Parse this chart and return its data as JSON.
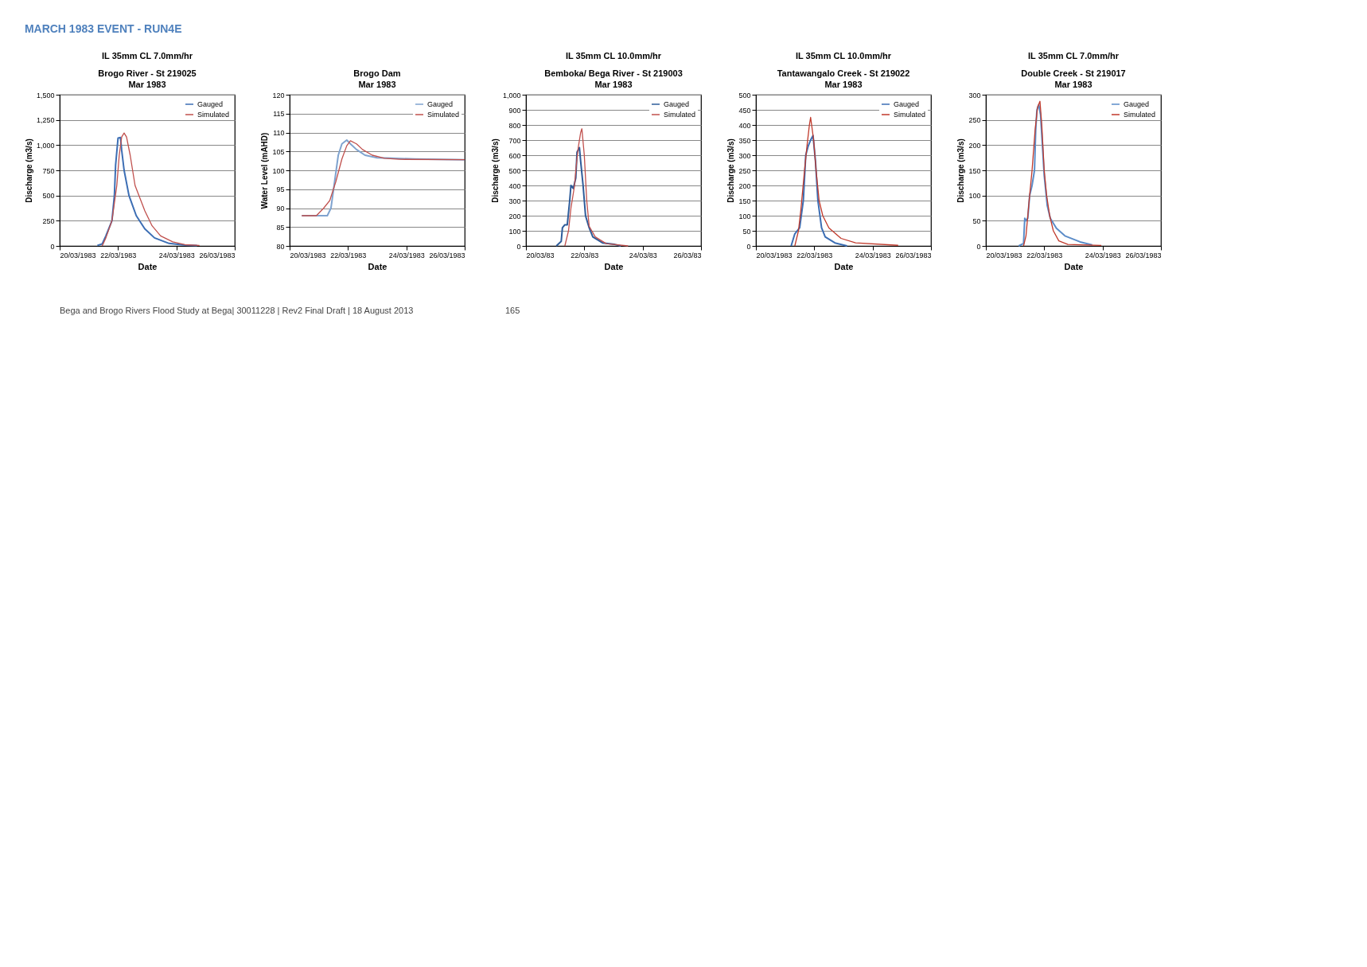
{
  "chart_data": [
    {
      "type": "line",
      "title": "Brogo River - St 219025",
      "subtitle": "Mar 1983",
      "xlabel": "Date",
      "ylabel": "Discharge (m3/s)",
      "annotations": [
        "MARCH 1983 EVENT - RUN4E",
        "IL 35mm CL 7.0mm/hr"
      ],
      "legend": "top right",
      "grid": "y",
      "marker": "none",
      "line_style": "solid",
      "xlim": [
        "1983-03-20",
        "1983-03-26"
      ],
      "xticks": [
        {
          "value": "1983-03-20",
          "label": "20/03/1983"
        },
        {
          "value": "1983-03-22",
          "label": "22/03/1983"
        },
        {
          "value": "1983-03-24",
          "label": "24/03/1983"
        },
        {
          "value": "1983-03-26",
          "label": "26/03/1983"
        }
      ],
      "ylim": [
        0,
        1500
      ],
      "yticks": [
        0,
        250,
        500,
        750,
        {
          "value": 1000,
          "label": "1,000"
        },
        {
          "value": 1250,
          "label": "1,250"
        },
        {
          "value": 1500,
          "label": "1,500"
        }
      ],
      "series": [
        {
          "name": "Gauged",
          "color": "#3c6eb4",
          "x": [
            "1983-03-21T07:00",
            "1983-03-21T11:00",
            "1983-03-21T14:00",
            "1983-03-21T19:00",
            "1983-03-21T21:00",
            "1983-03-21T22:00",
            "1983-03-22T00:00",
            "1983-03-22T02:00",
            "1983-03-22T03:00",
            "1983-03-22T05:00",
            "1983-03-22T09:00",
            "1983-03-22T15:00",
            "1983-03-22T22:00",
            "1983-03-23T06:00",
            "1983-03-23T18:00",
            "1983-03-24T07:00",
            "1983-03-24T17:00"
          ],
          "values": [
            5,
            20,
            100,
            250,
            500,
            800,
            1070,
            1075,
            950,
            750,
            500,
            300,
            170,
            80,
            25,
            8,
            3
          ]
        },
        {
          "name": "Simulated",
          "color": "#c0504d",
          "x": [
            "1983-03-21T11:00",
            "1983-03-21T14:00",
            "1983-03-21T19:00",
            "1983-03-21T23:00",
            "1983-03-22T01:00",
            "1983-03-22T03:00",
            "1983-03-22T05:00",
            "1983-03-22T07:00",
            "1983-03-22T10:00",
            "1983-03-22T14:00",
            "1983-03-22T22:00",
            "1983-03-23T04:00",
            "1983-03-23T11:00",
            "1983-03-23T21:00",
            "1983-03-24T07:00",
            "1983-03-24T19:00"
          ],
          "values": [
            0,
            80,
            250,
            600,
            900,
            1080,
            1120,
            1080,
            900,
            600,
            350,
            200,
            100,
            40,
            12,
            5
          ]
        }
      ]
    },
    {
      "type": "line",
      "title": "Brogo Dam",
      "subtitle": "Mar 1983",
      "xlabel": "Date",
      "ylabel": "Water Level (mAHD)",
      "legend": "top right",
      "grid": "y",
      "marker": "none",
      "line_style": "solid",
      "xlim": [
        "1983-03-20",
        "1983-03-26"
      ],
      "xticks": [
        {
          "value": "1983-03-20",
          "label": "20/03/1983"
        },
        {
          "value": "1983-03-22",
          "label": "22/03/1983"
        },
        {
          "value": "1983-03-24",
          "label": "24/03/1983"
        },
        {
          "value": "1983-03-26",
          "label": "26/03/1983"
        }
      ],
      "ylim": [
        80,
        120
      ],
      "yticks": [
        80,
        85,
        90,
        95,
        100,
        105,
        110,
        115,
        120
      ],
      "series": [
        {
          "name": "Gauged",
          "color": "#7fa3cf",
          "x": [
            "1983-03-20T10:00",
            "1983-03-21T07:00",
            "1983-03-21T10:00",
            "1983-03-21T13:00",
            "1983-03-21T16:00",
            "1983-03-21T19:00",
            "1983-03-21T23:00",
            "1983-03-22T02:00",
            "1983-03-22T07:00",
            "1983-03-22T14:00",
            "1983-03-23T00:00",
            "1983-03-23T12:00",
            "1983-03-24T07:00",
            "1983-03-26T00:00"
          ],
          "values": [
            88,
            88,
            90,
            97,
            104,
            107,
            108,
            107,
            105.5,
            104,
            103.3,
            103.2,
            103,
            102.8
          ]
        },
        {
          "name": "Simulated",
          "color": "#c0504d",
          "x": [
            "1983-03-20T10:00",
            "1983-03-20T22:00",
            "1983-03-21T04:00",
            "1983-03-21T09:00",
            "1983-03-21T14:00",
            "1983-03-21T19:00",
            "1983-03-21T23:00",
            "1983-03-22T02:00",
            "1983-03-22T07:00",
            "1983-03-22T12:00",
            "1983-03-22T20:00",
            "1983-03-23T06:00",
            "1983-03-23T18:00",
            "1983-03-26T00:00"
          ],
          "values": [
            88,
            88,
            90,
            92,
            97,
            103,
            106.5,
            107.8,
            107,
            105.5,
            104,
            103.2,
            102.9,
            102.8
          ]
        }
      ]
    },
    {
      "type": "line",
      "title": "Bemboka/ Bega River - St 219003",
      "subtitle": "Mar 1983",
      "xlabel": "Date",
      "ylabel": "Discharge (m3/s)",
      "annotations": [
        "IL 35mm CL 10.0mm/hr"
      ],
      "legend": "top right",
      "grid": "y",
      "marker": "none",
      "line_style": "solid",
      "xlim": [
        "1983-03-20",
        "1983-03-26"
      ],
      "xticks": [
        {
          "value": "1983-03-20",
          "label": "20/03/83"
        },
        {
          "value": "1983-03-22",
          "label": "22/03/83"
        },
        {
          "value": "1983-03-24",
          "label": "24/03/83"
        },
        {
          "value": "1983-03-26",
          "label": "26/03/83"
        }
      ],
      "ylim": [
        0,
        1000
      ],
      "yticks": [
        0,
        100,
        200,
        300,
        400,
        500,
        600,
        700,
        800,
        900,
        {
          "value": 1000,
          "label": "1,000"
        }
      ],
      "series": [
        {
          "name": "Gauged",
          "color": "#2e5c9a",
          "x": [
            "1983-03-21T01:00",
            "1983-03-21T05:00",
            "1983-03-21T06:00",
            "1983-03-21T08:00",
            "1983-03-21T10:00",
            "1983-03-21T12:00",
            "1983-03-21T13:00",
            "1983-03-21T15:00",
            "1983-03-21T17:00",
            "1983-03-21T18:00",
            "1983-03-21T20:00",
            "1983-03-21T21:00",
            "1983-03-21T23:00",
            "1983-03-22T01:00",
            "1983-03-22T04:00",
            "1983-03-22T07:00",
            "1983-03-22T15:00",
            "1983-03-23T01:00",
            "1983-03-23T06:00"
          ],
          "values": [
            0,
            30,
            120,
            140,
            140,
            300,
            400,
            380,
            450,
            620,
            650,
            560,
            400,
            200,
            120,
            60,
            20,
            10,
            0
          ]
        },
        {
          "name": "Simulated",
          "color": "#c0504d",
          "x": [
            "1983-03-21T08:00",
            "1983-03-21T11:00",
            "1983-03-21T13:00",
            "1983-03-21T16:00",
            "1983-03-21T17:00",
            "1983-03-21T19:00",
            "1983-03-21T21:00",
            "1983-03-21T22:00",
            "1983-03-22T00:00",
            "1983-03-22T02:00",
            "1983-03-22T04:00",
            "1983-03-22T09:00",
            "1983-03-22T18:00",
            "1983-03-23T12:00"
          ],
          "values": [
            0,
            100,
            250,
            400,
            500,
            650,
            750,
            775,
            600,
            300,
            130,
            60,
            15,
            0
          ]
        }
      ]
    },
    {
      "type": "line",
      "title": "Tantawangalo  Creek - St 219022",
      "subtitle": "Mar 1983",
      "xlabel": "Date",
      "ylabel": "Discharge (m3/s)",
      "annotations": [
        "IL 35mm CL 10.0mm/hr"
      ],
      "legend": "top right",
      "grid": "y",
      "marker": "none",
      "line_style": "solid",
      "xlim": [
        "1983-03-20",
        "1983-03-26"
      ],
      "xticks": [
        {
          "value": "1983-03-20",
          "label": "20/03/1983"
        },
        {
          "value": "1983-03-22",
          "label": "22/03/1983"
        },
        {
          "value": "1983-03-24",
          "label": "24/03/1983"
        },
        {
          "value": "1983-03-26",
          "label": "26/03/1983"
        }
      ],
      "ylim": [
        0,
        500
      ],
      "yticks": [
        0,
        50,
        100,
        150,
        200,
        250,
        300,
        350,
        400,
        450,
        500
      ],
      "series": [
        {
          "name": "Gauged",
          "color": "#3c6eb4",
          "x": [
            "1983-03-21T05:00",
            "1983-03-21T08:00",
            "1983-03-21T12:00",
            "1983-03-21T15:00",
            "1983-03-21T17:00",
            "1983-03-21T19:00",
            "1983-03-21T21:00",
            "1983-03-21T23:00",
            "1983-03-22T01:00",
            "1983-03-22T03:00",
            "1983-03-22T06:00",
            "1983-03-22T09:00",
            "1983-03-22T17:00",
            "1983-03-23T03:00"
          ],
          "values": [
            0,
            40,
            60,
            150,
            300,
            330,
            350,
            365,
            280,
            150,
            60,
            30,
            10,
            0
          ]
        },
        {
          "name": "Simulated",
          "color": "#c0392b",
          "x": [
            "1983-03-21T08:00",
            "1983-03-21T11:00",
            "1983-03-21T13:00",
            "1983-03-21T16:00",
            "1983-03-21T18:00",
            "1983-03-21T20:00",
            "1983-03-21T21:00",
            "1983-03-21T23:30",
            "1983-03-22T01:30",
            "1983-03-22T04:00",
            "1983-03-22T07:00",
            "1983-03-22T12:00",
            "1983-03-22T22:00",
            "1983-03-23T10:00",
            "1983-03-24T21:00"
          ],
          "values": [
            0,
            50,
            120,
            250,
            330,
            400,
            425,
            350,
            250,
            150,
            100,
            60,
            25,
            10,
            2
          ]
        }
      ]
    },
    {
      "type": "line",
      "title": "Double Creek - St 219017",
      "subtitle": "Mar 1983",
      "xlabel": "Date",
      "ylabel": "Discharge (m3/s)",
      "annotations": [
        "IL 35mm CL 7.0mm/hr",
        "Bega and Brogo Rivers Flood Study at Bega| 30011228 | Rev2 Final Draft | 18 August 2013",
        "165"
      ],
      "legend": "top right",
      "grid": "y",
      "marker": "none",
      "line_style": "solid",
      "xlim": [
        "1983-03-20",
        "1983-03-26"
      ],
      "xticks": [
        {
          "value": "1983-03-20",
          "label": "20/03/1983"
        },
        {
          "value": "1983-03-22",
          "label": "22/03/1983"
        },
        {
          "value": "1983-03-24",
          "label": "24/03/1983"
        },
        {
          "value": "1983-03-26",
          "label": "26/03/1983"
        }
      ],
      "ylim": [
        0,
        300
      ],
      "yticks": [
        0,
        50,
        100,
        150,
        200,
        250,
        300
      ],
      "series": [
        {
          "name": "Gauged",
          "color": "#5b8cc8",
          "x": [
            "1983-03-21T03:00",
            "1983-03-21T07:00",
            "1983-03-21T08:00",
            "1983-03-21T09:00",
            "1983-03-21T10:30",
            "1983-03-21T12:00",
            "1983-03-21T14:00",
            "1983-03-21T16:00",
            "1983-03-21T17:00",
            "1983-03-21T18:00",
            "1983-03-21T19:30",
            "1983-03-21T21:00",
            "1983-03-21T22:00",
            "1983-03-22T00:00",
            "1983-03-22T02:30",
            "1983-03-22T05:00",
            "1983-03-22T10:00",
            "1983-03-22T17:00",
            "1983-03-23T05:30",
            "1983-03-23T15:30"
          ],
          "values": [
            0,
            5,
            55,
            50,
            55,
            100,
            120,
            150,
            230,
            270,
            280,
            260,
            220,
            140,
            80,
            55,
            35,
            20,
            8,
            2
          ]
        },
        {
          "name": "Simulated",
          "color": "#c0392b",
          "x": [
            "1983-03-21T07:00",
            "1983-03-21T09:00",
            "1983-03-21T12:00",
            "1983-03-21T14:00",
            "1983-03-21T16:30",
            "1983-03-21T18:30",
            "1983-03-21T20:30",
            "1983-03-21T22:00",
            "1983-03-22T00:00",
            "1983-03-22T02:00",
            "1983-03-22T04:30",
            "1983-03-22T07:30",
            "1983-03-22T12:00",
            "1983-03-22T19:30",
            "1983-03-23T23:00"
          ],
          "values": [
            0,
            20,
            100,
            150,
            230,
            275,
            287,
            240,
            150,
            100,
            60,
            30,
            10,
            3,
            1
          ]
        }
      ]
    }
  ]
}
